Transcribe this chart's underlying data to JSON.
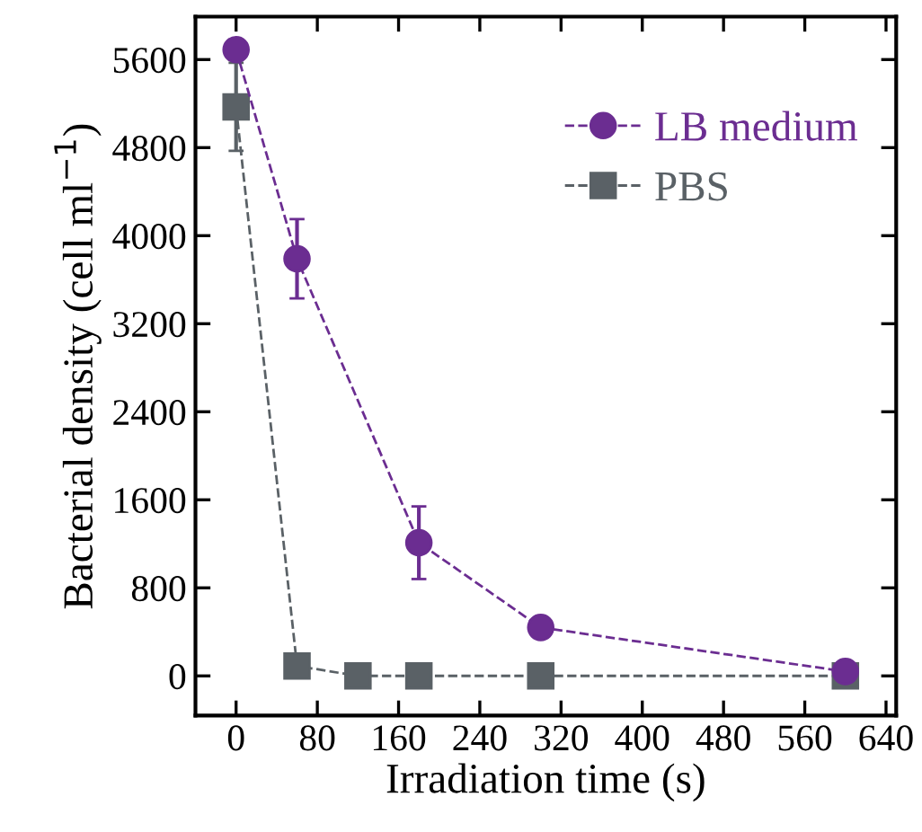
{
  "chart_data": {
    "type": "line",
    "xlabel": "Irradiation time (s)",
    "ylabel": "Bacterial density (cell ml$^{−1}$)",
    "xlim": [
      -40,
      650
    ],
    "xticks": [
      0,
      80,
      160,
      240,
      320,
      400,
      480,
      560,
      640
    ],
    "ylim": [
      -360,
      5990
    ],
    "yticks": [
      0,
      800,
      1600,
      2400,
      3200,
      4000,
      4800,
      5600
    ],
    "grid": false,
    "legend": "top right",
    "line_style": "dashed",
    "series": [
      {
        "name": "LB medium",
        "color": "#6b2d91",
        "marker": "circle",
        "x": [
          0,
          60,
          180,
          300,
          600
        ],
        "values": [
          5690,
          3790,
          1210,
          440,
          40
        ],
        "errors": [
          60,
          360,
          330,
          70,
          60
        ]
      },
      {
        "name": "PBS",
        "color": "#5a6166",
        "marker": "square",
        "x": [
          0,
          60,
          120,
          180,
          300,
          600
        ],
        "values": [
          5170,
          90,
          0,
          0,
          0,
          0
        ],
        "errors": [
          400,
          null,
          null,
          null,
          null,
          null
        ]
      }
    ]
  }
}
